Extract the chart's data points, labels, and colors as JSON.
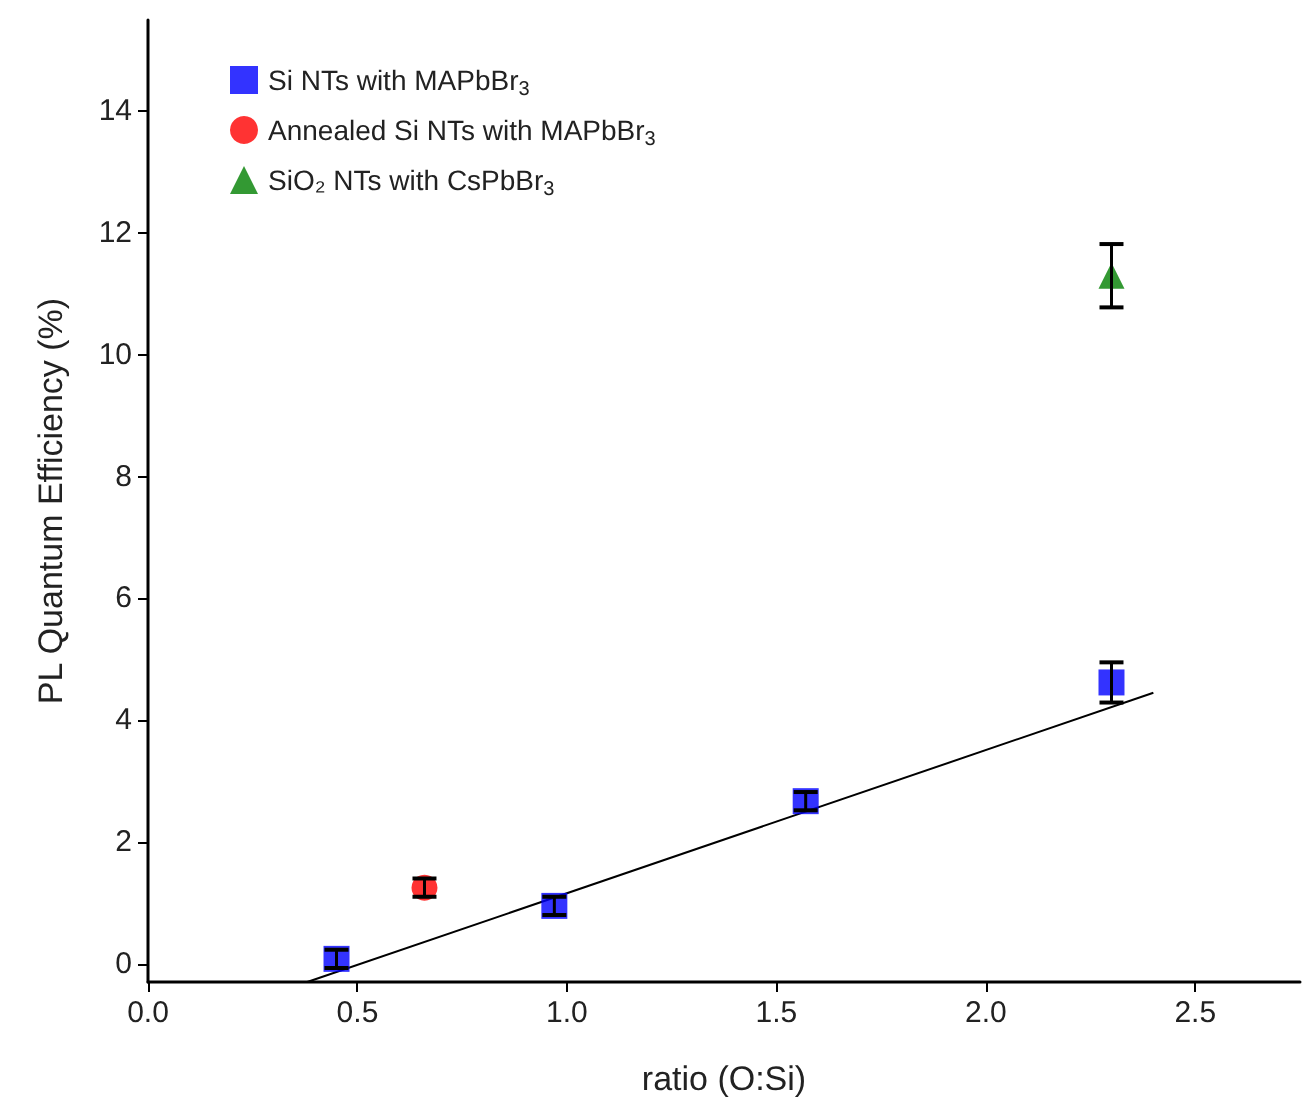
{
  "chart_data": {
    "type": "scatter",
    "xlabel": "ratio (O:Si)",
    "ylabel": "PL Quantum Efficiency (%)",
    "xlim": [
      0,
      2.75
    ],
    "xticks": [
      {
        "value": 0,
        "label": "0.0"
      },
      {
        "value": 0.5,
        "label": "0.5"
      },
      {
        "value": 1,
        "label": "1.0"
      },
      {
        "value": 1.5,
        "label": "1.5"
      },
      {
        "value": 2,
        "label": "2.0"
      },
      {
        "value": 2.5,
        "label": "2.5"
      }
    ],
    "ylim": [
      -0.3,
      15.5
    ],
    "yticks": [
      0,
      2,
      4,
      6,
      8,
      10,
      12,
      14
    ],
    "grid": false,
    "legend": "top left",
    "series": [
      {
        "name": "Si NTs with MAPbBr$_{3}$",
        "color": "#0000ff",
        "marker": "square",
        "x": [
          0.45,
          0.97,
          1.57,
          2.3
        ],
        "values": [
          0.08,
          0.95,
          2.67,
          4.62
        ],
        "errors": [
          0.15,
          0.15,
          0.15,
          0.33
        ]
      },
      {
        "name": "Annealed Si NTs with MAPbBr$_{3}$",
        "color": "#ff0000",
        "marker": "circle",
        "x": [
          0.66
        ],
        "values": [
          1.25
        ],
        "errors": [
          0.15
        ]
      },
      {
        "name": "SiO₂ NTs with CsPbBr$_{3}$",
        "color": "#008000",
        "marker": "triangle",
        "x": [
          2.3
        ],
        "values": [
          11.3
        ],
        "errors": [
          0.52
        ]
      },
      {
        "type": "line",
        "color": "#000000",
        "marker": "none",
        "x": [
          0.38,
          2.4
        ],
        "values": [
          -0.3,
          4.45
        ]
      }
    ]
  }
}
